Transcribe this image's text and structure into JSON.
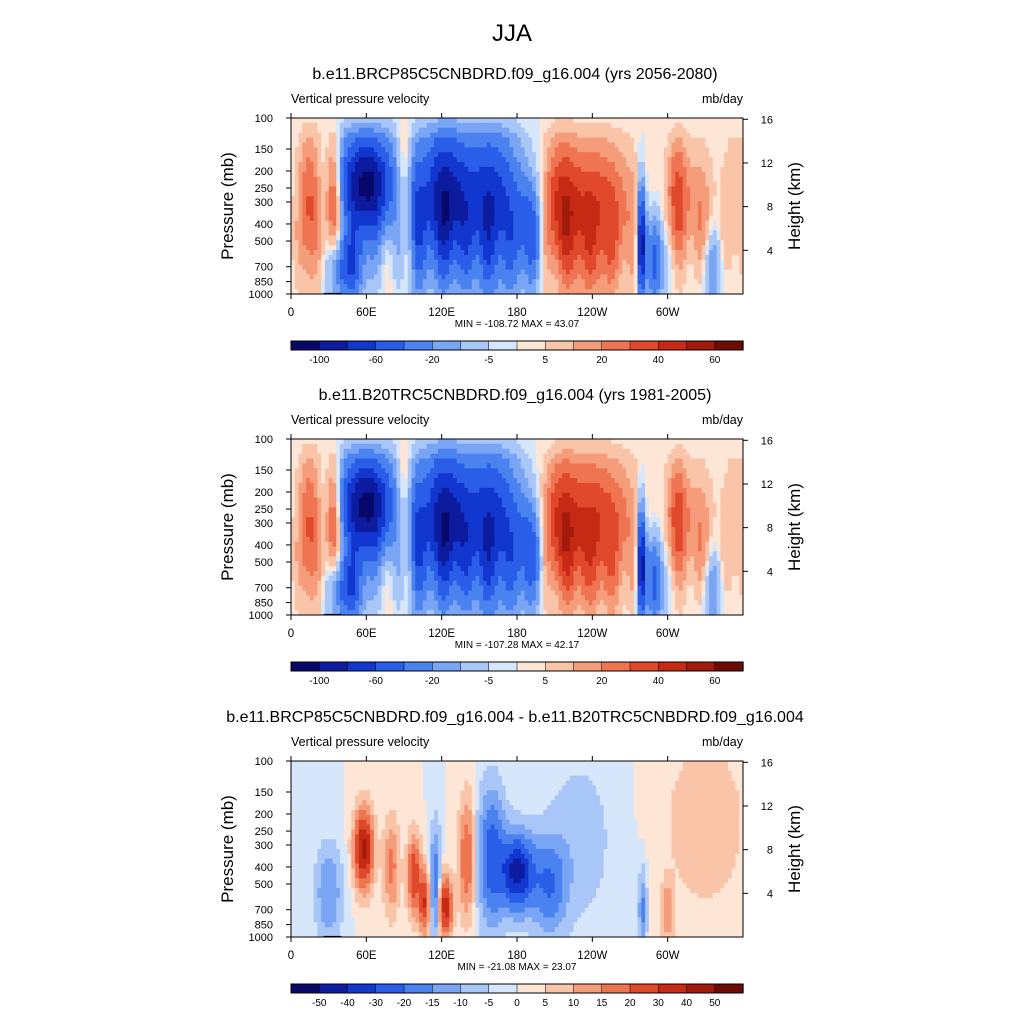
{
  "figure": {
    "title": "JJA"
  },
  "palettes": {
    "full": [
      "#08086b",
      "#0d1c9e",
      "#1137cf",
      "#2a5ee8",
      "#4a82f0",
      "#7aa5f5",
      "#a9c6f8",
      "#d6e6fb",
      "#fde6d6",
      "#f9c4a8",
      "#f59d7b",
      "#ef7552",
      "#e0492c",
      "#c62a14",
      "#a11a0c",
      "#6e0a04"
    ],
    "diff": [
      "#08086b",
      "#0d1c9e",
      "#1137cf",
      "#2a5ee8",
      "#4a82f0",
      "#7aa5f5",
      "#a9c6f8",
      "#d6e6fb",
      "#fde6d6",
      "#f9c4a8",
      "#f59d7b",
      "#ef7552",
      "#e0492c",
      "#c62a14",
      "#a11a0c",
      "#6e0a04"
    ]
  },
  "chart_data": [
    {
      "type": "heatmap",
      "title": "b.e11.BRCP85C5CNBDRD.f09_g16.004 (yrs 2056-2080)",
      "variable": "Vertical pressure velocity",
      "units": "mb/day",
      "ylabel": "Pressure (mb)",
      "ylabel_right": "Height (km)",
      "x_ticks": [
        0,
        60,
        120,
        180,
        240,
        300
      ],
      "x_labels": [
        "0",
        "60E",
        "120E",
        "180",
        "120W",
        "60W"
      ],
      "xlim": [
        0,
        360
      ],
      "y_ticks": [
        100,
        150,
        200,
        250,
        300,
        400,
        500,
        700,
        850,
        1000
      ],
      "y_labels": [
        "100",
        "150",
        "200",
        "250",
        "300",
        "400",
        "500",
        "700",
        "850",
        "1000"
      ],
      "ylim": [
        100,
        1000
      ],
      "height_ticks": [
        4,
        8,
        12,
        16
      ],
      "height_labels": [
        "4",
        "8",
        "12",
        "16"
      ],
      "stats": "MIN = -108.72  MAX =  43.07",
      "min": -108.72,
      "max": 43.07,
      "colorbar_labels": [
        "-100",
        "-60",
        "-20",
        "-5",
        "5",
        "20",
        "40",
        "60"
      ],
      "palette": "full",
      "shift": 1.0
    },
    {
      "type": "heatmap",
      "title": "b.e11.B20TRC5CNBDRD.f09_g16.004 (yrs 1981-2005)",
      "variable": "Vertical pressure velocity",
      "units": "mb/day",
      "ylabel": "Pressure (mb)",
      "ylabel_right": "Height (km)",
      "x_ticks": [
        0,
        60,
        120,
        180,
        240,
        300
      ],
      "x_labels": [
        "0",
        "60E",
        "120E",
        "180",
        "120W",
        "60W"
      ],
      "xlim": [
        0,
        360
      ],
      "y_ticks": [
        100,
        150,
        200,
        250,
        300,
        400,
        500,
        700,
        850,
        1000
      ],
      "y_labels": [
        "100",
        "150",
        "200",
        "250",
        "300",
        "400",
        "500",
        "700",
        "850",
        "1000"
      ],
      "ylim": [
        100,
        1000
      ],
      "height_ticks": [
        4,
        8,
        12,
        16
      ],
      "height_labels": [
        "4",
        "8",
        "12",
        "16"
      ],
      "stats": "MIN = -107.28  MAX =  42.17",
      "min": -107.28,
      "max": 42.17,
      "colorbar_labels": [
        "-100",
        "-60",
        "-20",
        "-5",
        "5",
        "20",
        "40",
        "60"
      ],
      "palette": "full",
      "shift": 0.0
    },
    {
      "type": "heatmap",
      "title": "b.e11.BRCP85C5CNBDRD.f09_g16.004 - b.e11.B20TRC5CNBDRD.f09_g16.004",
      "variable": "Vertical pressure velocity",
      "units": "mb/day",
      "ylabel": "Pressure (mb)",
      "ylabel_right": "Height (km)",
      "x_ticks": [
        0,
        60,
        120,
        180,
        240,
        300
      ],
      "x_labels": [
        "0",
        "60E",
        "120E",
        "180",
        "120W",
        "60W"
      ],
      "xlim": [
        0,
        360
      ],
      "y_ticks": [
        100,
        150,
        200,
        250,
        300,
        400,
        500,
        700,
        850,
        1000
      ],
      "y_labels": [
        "100",
        "150",
        "200",
        "250",
        "300",
        "400",
        "500",
        "700",
        "850",
        "1000"
      ],
      "ylim": [
        100,
        1000
      ],
      "height_ticks": [
        4,
        8,
        12,
        16
      ],
      "height_labels": [
        "4",
        "8",
        "12",
        "16"
      ],
      "stats": "MIN = -21.08  MAX =  23.07",
      "min": -21.08,
      "max": 23.07,
      "colorbar_labels": [
        "-50",
        "-40",
        "-30",
        "-20",
        "-15",
        "-10",
        "-5",
        "0",
        "5",
        "10",
        "15",
        "20",
        "30",
        "40",
        "50"
      ],
      "palette": "diff",
      "shift": 0.0
    }
  ]
}
